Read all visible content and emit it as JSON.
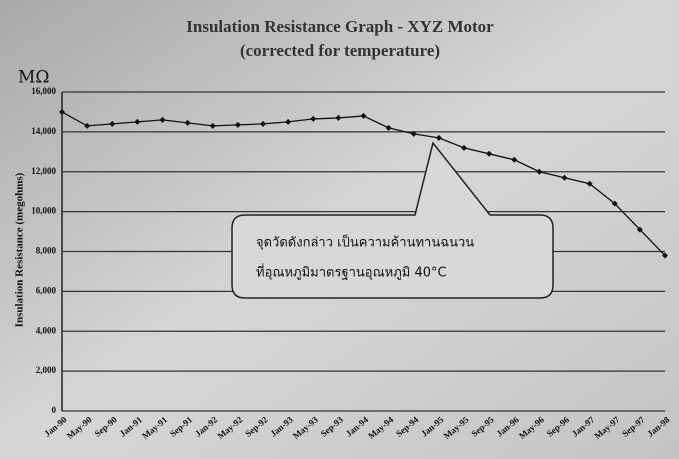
{
  "chart_data": {
    "type": "line",
    "title": "Insulation Resistance Graph - XYZ Motor",
    "subtitle": "(corrected for temperature)",
    "unit_label": "MΩ",
    "ylabel": "Insulation Resistance (megohms)",
    "categories": [
      "Jan-90",
      "May-90",
      "Sep-90",
      "Jan-91",
      "May-91",
      "Sep-91",
      "Jan-92",
      "May-92",
      "Sep-92",
      "Jan-93",
      "May-93",
      "Sep-93",
      "Jan-94",
      "May-94",
      "Sep-94",
      "Jan-95",
      "May-95",
      "Sep-95",
      "Jan-96",
      "May-96",
      "Sep-96",
      "Jan-97",
      "May-97",
      "Sep-97",
      "Jan-98"
    ],
    "values": [
      15000,
      14300,
      14400,
      14500,
      14600,
      14450,
      14300,
      14350,
      14400,
      14500,
      14650,
      14700,
      14800,
      14200,
      13900,
      13700,
      13200,
      12900,
      12600,
      12000,
      11700,
      11400,
      10400,
      9100,
      7800
    ],
    "color": "#111111",
    "ylim": [
      0,
      16000
    ],
    "yticks": [
      0,
      {
        "value": 2000,
        "label": "2,000"
      },
      {
        "value": 4000,
        "label": "4,000"
      },
      {
        "value": 6000,
        "label": "6,000"
      },
      {
        "value": 8000,
        "label": "8,000"
      },
      {
        "value": 10000,
        "label": "10,000"
      },
      {
        "value": 12000,
        "label": "12,000"
      },
      {
        "value": 14000,
        "label": "14,000"
      },
      {
        "value": 16000,
        "label": "16,000"
      }
    ],
    "grid": true,
    "annotation": [
      "จุดวัดดังกล่าว  เป็นความค้านทานฉนวน",
      "ที่อุณหภูมิมาตรฐานอุณหภูมิ 40°C"
    ]
  }
}
